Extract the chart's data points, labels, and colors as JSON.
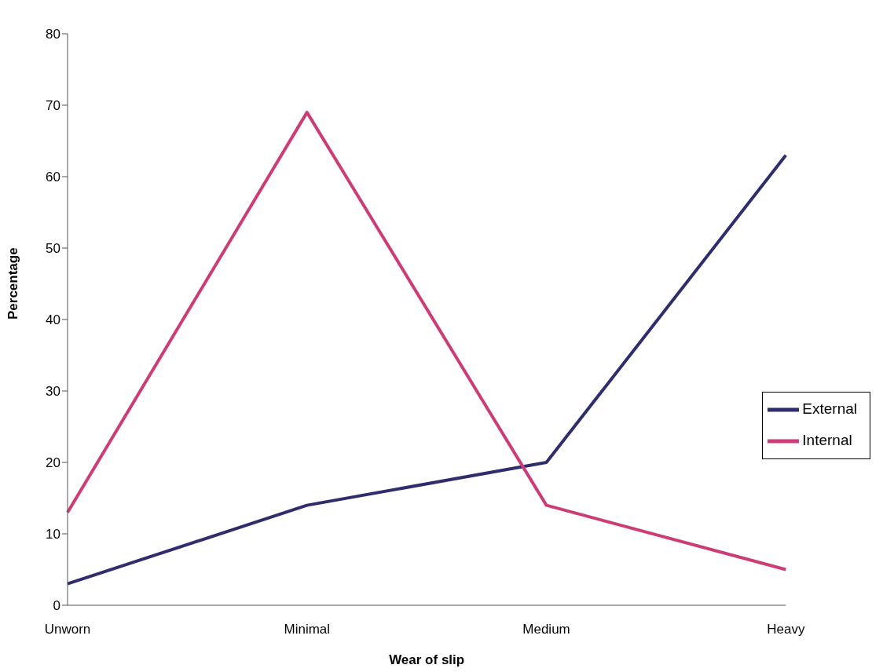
{
  "chart_data": {
    "type": "line",
    "xlabel": "Wear of slip",
    "ylabel": "Percentage",
    "categories": [
      "Unworn",
      "Minimal",
      "Medium",
      "Heavy"
    ],
    "series": [
      {
        "name": "External",
        "color": "#2e2d6e",
        "values": [
          3,
          14,
          20,
          63
        ]
      },
      {
        "name": "Internal",
        "color": "#cc3d77",
        "values": [
          13,
          69,
          14,
          5
        ]
      }
    ],
    "ylim": [
      0,
      80
    ],
    "yticks": [
      0,
      10,
      20,
      30,
      40,
      50,
      60,
      70,
      80
    ],
    "grid": false,
    "legend": "right",
    "marker": "none",
    "line_style": "solid"
  }
}
